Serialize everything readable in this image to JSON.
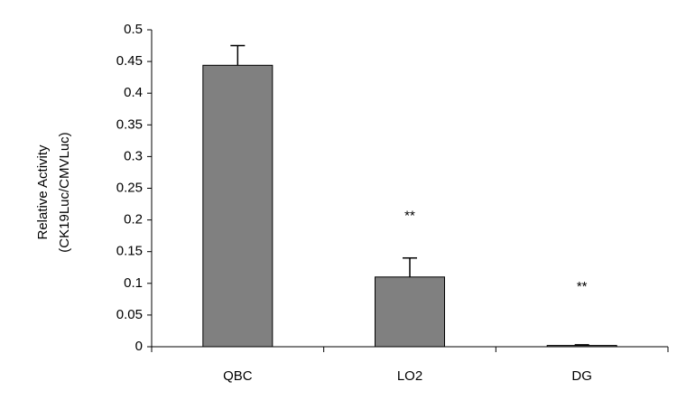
{
  "chart_data": {
    "type": "bar",
    "ylabel": [
      "Relative Activity",
      "(CK19Luc/CMVLuc)"
    ],
    "categories": [
      "QBC",
      "LO2",
      "DG"
    ],
    "values": [
      0.444,
      0.11,
      0.002
    ],
    "errors": [
      0.031,
      0.03,
      0.001
    ],
    "annotations": [
      null,
      "**",
      "**"
    ],
    "color": "#808080",
    "ylim": [
      0,
      0.5
    ],
    "yticks": [
      0,
      0.05,
      0.1,
      0.15,
      0.2,
      0.25,
      0.3,
      0.35,
      0.4,
      0.45,
      0.5
    ],
    "grid": false
  }
}
